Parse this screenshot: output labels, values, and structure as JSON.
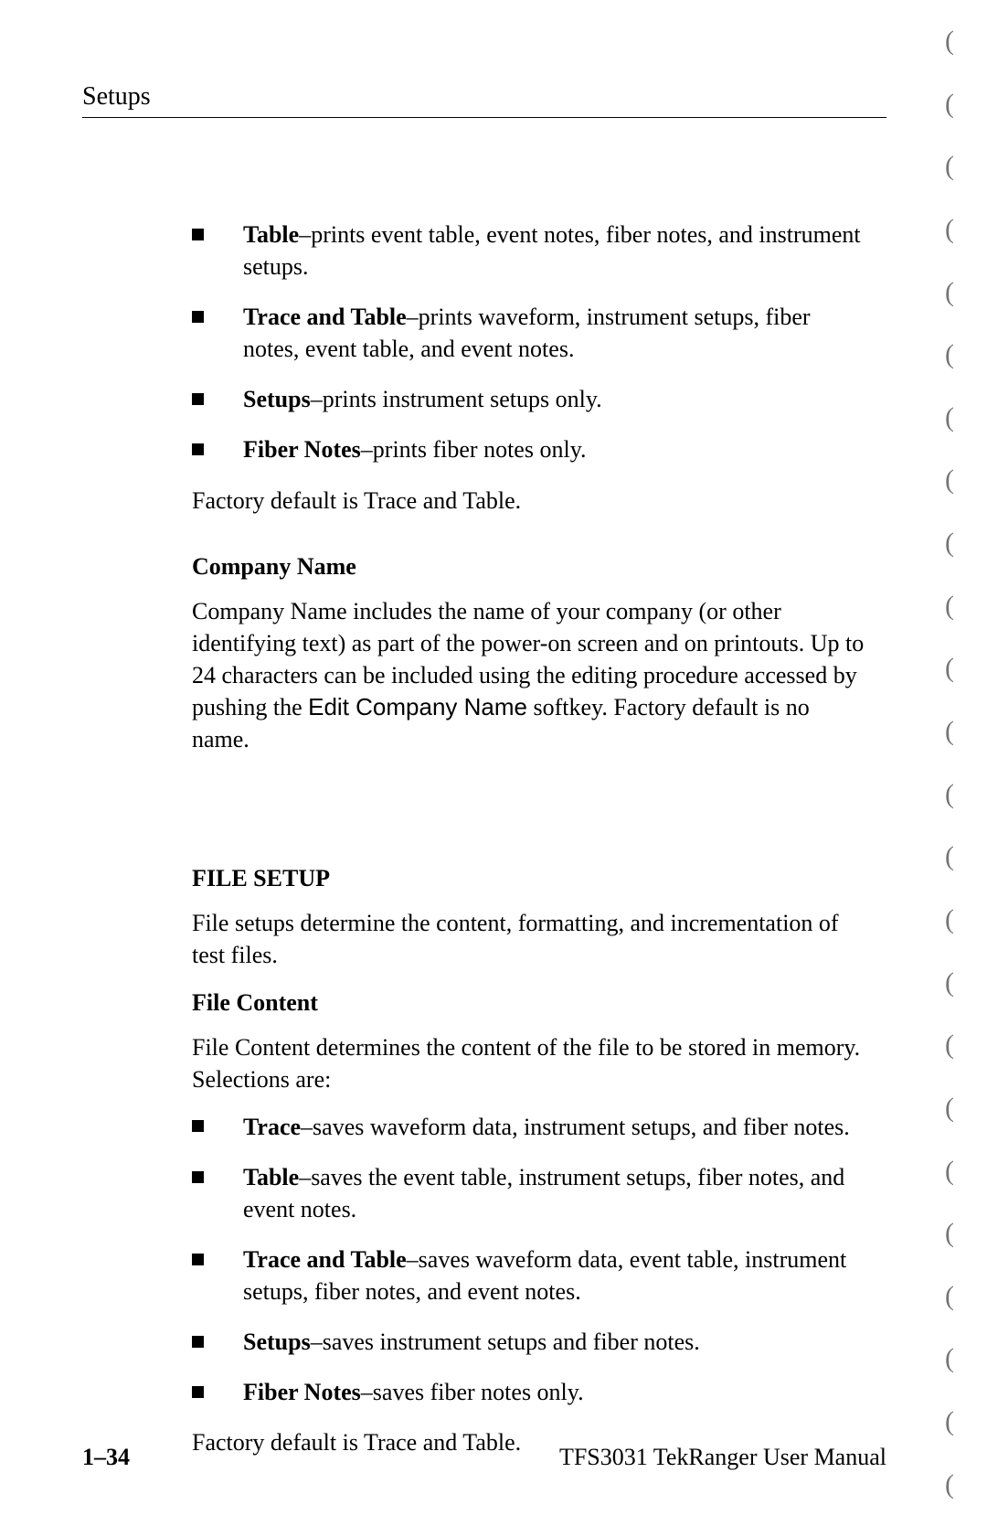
{
  "runningHead": "Setups",
  "topList": [
    {
      "bold": "Table",
      "rest": "–prints event table, event notes, fiber notes, and instrument setups."
    },
    {
      "bold": "Trace and Table",
      "rest": "–prints waveform, instrument setups, fiber notes, event table, and event notes."
    },
    {
      "bold": "Setups",
      "rest": "–prints instrument setups only."
    },
    {
      "bold": "Fiber Notes",
      "rest": "–prints fiber notes only."
    }
  ],
  "topDefault": "Factory default is Trace and Table.",
  "companyName": {
    "heading": "Company Name",
    "para_pre": "Company Name includes the name of your company (or other identifying text) as part of the power-on screen and on printouts. Up to 24 characters can be included using the editing procedure accessed by pushing the ",
    "softkey": "Edit Company Name",
    "para_post": " softkey. Factory default is no name."
  },
  "fileSetup": {
    "heading": "FILE SETUP",
    "intro": "File setups determine the content, formatting, and incrementation of test files.",
    "fileContentHeading": "File Content",
    "fileContentIntro": "File Content determines the content of the file to be stored in memory. Selections are:",
    "list": [
      {
        "bold": "Trace",
        "rest": "–saves waveform data, instrument setups, and fiber notes."
      },
      {
        "bold": "Table",
        "rest": "–saves the event table, instrument setups, fiber notes, and event notes."
      },
      {
        "bold": "Trace and Table",
        "rest": "–saves waveform data, event table, instrument setups, fiber notes, and event notes."
      },
      {
        "bold": "Setups",
        "rest": "–saves instrument setups and fiber notes."
      },
      {
        "bold": "Fiber Notes",
        "rest": "–saves fiber notes only."
      }
    ],
    "default": "Factory default is Trace and Table."
  },
  "footer": {
    "pageNum": "1–34",
    "manual": "TFS3031 TekRanger User Manual"
  },
  "edgeMarkCount": 24
}
